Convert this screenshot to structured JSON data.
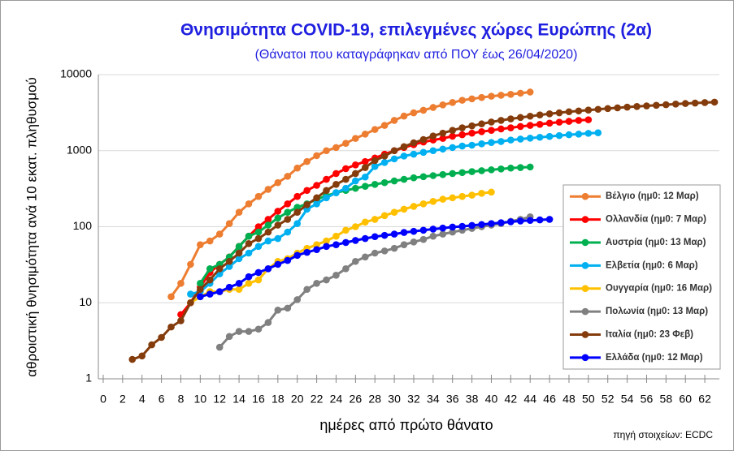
{
  "chart_data": {
    "type": "line",
    "title": "Θνησιμότητα COVID-19, επιλεγμένες χώρες Ευρώπης (2α)",
    "subtitle": "(Θάνατοι που καταγράφηκαν από ΠΟΥ έως 26/04/2020)",
    "xlabel": "ημέρες από πρώτο θάνατο",
    "ylabel": "αθροιστική θνησιμότητα ανά 10 εκατ. πληθυσμού",
    "annotation": "πηγή στοιχείων: ECDC",
    "log_y": true,
    "grid": true,
    "legend": "right",
    "xlim": [
      -0.5,
      63.5
    ],
    "xticks": [
      0,
      2,
      4,
      6,
      8,
      10,
      12,
      14,
      16,
      18,
      20,
      22,
      24,
      26,
      28,
      30,
      32,
      34,
      36,
      38,
      40,
      42,
      44,
      46,
      48,
      50,
      52,
      54,
      56,
      58,
      60,
      62
    ],
    "ylim": [
      1,
      10000
    ],
    "yticks": [
      1,
      10,
      100,
      1000,
      10000
    ],
    "series": [
      {
        "name": "Βέλγιο (ημ0: 12 Μαρ)",
        "color": "#ed7d31",
        "x": [
          7,
          8,
          9,
          10,
          11,
          12,
          13,
          14,
          15,
          16,
          17,
          18,
          19,
          20,
          21,
          22,
          23,
          24,
          25,
          26,
          27,
          28,
          29,
          30,
          31,
          32,
          33,
          34,
          35,
          36,
          37,
          38,
          39,
          40,
          41,
          42,
          43,
          44
        ],
        "values": [
          12,
          18,
          32,
          58,
          65,
          80,
          110,
          155,
          200,
          250,
          310,
          380,
          460,
          590,
          720,
          860,
          1000,
          1100,
          1250,
          1450,
          1650,
          1900,
          2150,
          2500,
          2850,
          3150,
          3400,
          3700,
          4000,
          4300,
          4600,
          4800,
          5000,
          5200,
          5350,
          5500,
          5700,
          5900
        ]
      },
      {
        "name": "Ολλανδία (ημ0: 7 Μαρ)",
        "color": "#ff0000",
        "x": [
          8,
          9,
          10,
          11,
          12,
          13,
          14,
          15,
          16,
          17,
          18,
          19,
          20,
          21,
          22,
          23,
          24,
          25,
          26,
          27,
          28,
          29,
          30,
          31,
          32,
          33,
          34,
          35,
          36,
          37,
          38,
          39,
          40,
          41,
          42,
          43,
          44,
          45,
          46,
          47,
          48,
          49,
          50
        ],
        "values": [
          7,
          10,
          16,
          25,
          32,
          40,
          55,
          75,
          100,
          125,
          160,
          200,
          250,
          300,
          350,
          420,
          500,
          580,
          650,
          720,
          800,
          900,
          1000,
          1100,
          1200,
          1300,
          1380,
          1450,
          1550,
          1620,
          1700,
          1780,
          1850,
          1930,
          2000,
          2080,
          2150,
          2220,
          2300,
          2370,
          2430,
          2500,
          2550
        ]
      },
      {
        "name": "Αυστρία (ημ0: 13 Μαρ)",
        "color": "#00b050",
        "x": [
          10,
          11,
          12,
          13,
          14,
          15,
          16,
          17,
          18,
          19,
          20,
          21,
          22,
          23,
          24,
          25,
          26,
          27,
          28,
          29,
          30,
          31,
          32,
          33,
          34,
          35,
          36,
          37,
          38,
          39,
          40,
          41,
          42,
          43,
          44
        ],
        "values": [
          18,
          28,
          32,
          40,
          55,
          75,
          85,
          105,
          130,
          155,
          180,
          200,
          230,
          255,
          280,
          300,
          320,
          340,
          360,
          380,
          400,
          420,
          440,
          455,
          470,
          485,
          500,
          515,
          530,
          545,
          560,
          575,
          590,
          600,
          610
        ]
      },
      {
        "name": "Ελβετία (ημ0: 6 Μαρ)",
        "color": "#00b0f0",
        "x": [
          9,
          10,
          11,
          12,
          13,
          14,
          15,
          16,
          17,
          18,
          19,
          20,
          21,
          22,
          23,
          24,
          25,
          26,
          27,
          28,
          29,
          30,
          31,
          32,
          33,
          34,
          35,
          36,
          37,
          38,
          39,
          40,
          41,
          42,
          43,
          44,
          45,
          46,
          47,
          48,
          49,
          50,
          51
        ],
        "values": [
          13,
          14,
          18,
          24,
          30,
          38,
          45,
          55,
          65,
          70,
          85,
          110,
          170,
          200,
          240,
          280,
          320,
          400,
          450,
          620,
          700,
          780,
          850,
          900,
          950,
          1000,
          1050,
          1100,
          1150,
          1180,
          1230,
          1280,
          1320,
          1380,
          1420,
          1460,
          1500,
          1540,
          1580,
          1620,
          1650,
          1690,
          1720
        ]
      },
      {
        "name": "Ουγγαρία (ημ0: 16 Μαρ)",
        "color": "#ffc000",
        "x": [
          9,
          10,
          11,
          12,
          13,
          14,
          15,
          16,
          17,
          18,
          19,
          20,
          21,
          22,
          23,
          24,
          25,
          26,
          27,
          28,
          29,
          30,
          31,
          32,
          33,
          34,
          35,
          36,
          37,
          38,
          39,
          40
        ],
        "values": [
          10,
          12,
          14,
          14,
          15,
          15,
          18,
          20,
          28,
          35,
          38,
          45,
          52,
          58,
          65,
          75,
          90,
          100,
          115,
          125,
          140,
          155,
          170,
          185,
          200,
          215,
          230,
          240,
          250,
          260,
          275,
          285
        ]
      },
      {
        "name": "Πολωνία (ημ0: 13 Μαρ)",
        "color": "#808080",
        "x": [
          12,
          13,
          14,
          15,
          16,
          17,
          18,
          19,
          20,
          21,
          22,
          23,
          24,
          25,
          26,
          27,
          28,
          29,
          30,
          31,
          32,
          33,
          34,
          35,
          36,
          37,
          38,
          39,
          40,
          41,
          42,
          43,
          44
        ],
        "values": [
          2.6,
          3.6,
          4.2,
          4.2,
          4.5,
          5.5,
          8,
          8.5,
          11,
          15,
          18,
          20,
          23,
          28,
          35,
          40,
          45,
          48,
          52,
          58,
          63,
          68,
          75,
          80,
          85,
          90,
          95,
          100,
          105,
          110,
          118,
          125,
          135
        ]
      },
      {
        "name": "Ιταλία (ημ0: 23 Φεβ)",
        "color": "#843c0c",
        "x": [
          3,
          4,
          5,
          6,
          7,
          8,
          9,
          10,
          11,
          12,
          13,
          14,
          15,
          16,
          17,
          18,
          19,
          20,
          21,
          22,
          23,
          24,
          25,
          26,
          27,
          28,
          29,
          30,
          31,
          32,
          33,
          34,
          35,
          36,
          37,
          38,
          39,
          40,
          41,
          42,
          43,
          44,
          45,
          46,
          47,
          48,
          49,
          50,
          51,
          52,
          53,
          54,
          55,
          56,
          57,
          58,
          59,
          60,
          61,
          62,
          63
        ],
        "values": [
          1.8,
          2,
          2.8,
          3.5,
          4.8,
          5.8,
          10,
          15,
          20,
          28,
          35,
          45,
          60,
          70,
          85,
          105,
          125,
          155,
          195,
          240,
          300,
          360,
          420,
          500,
          600,
          740,
          850,
          1000,
          1130,
          1270,
          1400,
          1560,
          1700,
          1850,
          2000,
          2120,
          2250,
          2380,
          2500,
          2620,
          2730,
          2840,
          2950,
          3050,
          3150,
          3250,
          3330,
          3420,
          3500,
          3580,
          3660,
          3740,
          3810,
          3880,
          3950,
          4020,
          4100,
          4170,
          4230,
          4290,
          4350
        ]
      },
      {
        "name": "Ελλάδα (ημ0: 12 Μαρ)",
        "color": "#0000ff",
        "x": [
          10,
          11,
          12,
          13,
          14,
          15,
          16,
          17,
          18,
          19,
          20,
          21,
          22,
          23,
          24,
          25,
          26,
          27,
          28,
          29,
          30,
          31,
          32,
          33,
          34,
          35,
          36,
          37,
          38,
          39,
          40,
          41,
          42,
          43,
          44,
          45,
          46
        ],
        "values": [
          12,
          13,
          14,
          16,
          18,
          22,
          25,
          28,
          32,
          36,
          42,
          46,
          50,
          55,
          58,
          62,
          66,
          70,
          74,
          77,
          80,
          84,
          87,
          90,
          93,
          96,
          99,
          101,
          104,
          107,
          110,
          113,
          116,
          119,
          121,
          123,
          125
        ]
      }
    ]
  }
}
